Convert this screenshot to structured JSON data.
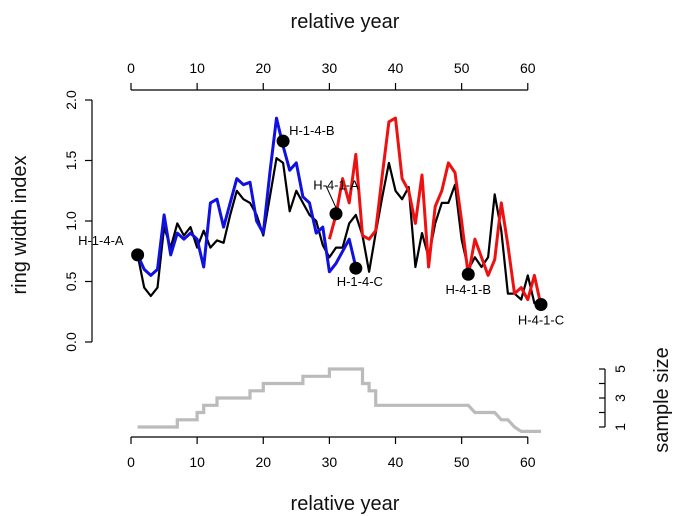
{
  "chart_data": [
    {
      "type": "line",
      "title": "",
      "xlabel_top": "relative year",
      "ylabel": "ring width index",
      "x_ticks": [
        0,
        10,
        20,
        30,
        40,
        50,
        60
      ],
      "xlim": [
        0,
        62
      ],
      "y_ticks": [
        0.0,
        0.5,
        1.0,
        1.5,
        2.0
      ],
      "y_tick_labels": [
        "0.0",
        "0.5",
        "1.0",
        "1.5",
        "2.0"
      ],
      "ylim": [
        0,
        2
      ],
      "grid": false,
      "series": [
        {
          "color": "#000000",
          "x": [
            1,
            2,
            3,
            4,
            5,
            6,
            7,
            8,
            9,
            10,
            11,
            12,
            13,
            14,
            15,
            16,
            17,
            18,
            19,
            20,
            21,
            22,
            23,
            24,
            25,
            26,
            27,
            28,
            29,
            30,
            31,
            32,
            33,
            34,
            35,
            36,
            37,
            38,
            39,
            40,
            41,
            42,
            43,
            44,
            45,
            46,
            47,
            48,
            49,
            50,
            51,
            52,
            53,
            54,
            55,
            56,
            57,
            58,
            59,
            60,
            61,
            62
          ],
          "values": [
            0.72,
            0.45,
            0.38,
            0.45,
            0.95,
            0.78,
            0.98,
            0.88,
            0.95,
            0.78,
            0.92,
            0.78,
            0.84,
            0.82,
            1.05,
            1.25,
            1.18,
            1.15,
            1.05,
            0.88,
            1.2,
            1.52,
            1.48,
            1.08,
            1.25,
            1.15,
            1.05,
            1.0,
            0.8,
            0.7,
            0.78,
            0.78,
            0.98,
            1.05,
            0.88,
            0.58,
            0.9,
            1.2,
            1.48,
            1.25,
            1.18,
            1.28,
            0.62,
            0.9,
            0.7,
            0.98,
            1.15,
            1.15,
            1.3,
            0.85,
            0.6,
            0.7,
            0.62,
            0.7,
            1.22,
            0.92,
            0.4,
            0.4,
            0.35,
            0.55,
            0.32,
            0.3
          ]
        },
        {
          "color": "#1010e0",
          "x": [
            1,
            2,
            3,
            4,
            5,
            6,
            7,
            8,
            9,
            10,
            11,
            12,
            13,
            14,
            15,
            16,
            17,
            18,
            19,
            20,
            21,
            22,
            23,
            24,
            25,
            26,
            27,
            28,
            29,
            30,
            31,
            32,
            33,
            34
          ],
          "values": [
            0.72,
            0.6,
            0.55,
            0.6,
            1.05,
            0.72,
            0.9,
            0.85,
            0.9,
            0.85,
            0.62,
            1.15,
            1.18,
            0.95,
            1.15,
            1.35,
            1.3,
            1.32,
            1.0,
            0.9,
            1.4,
            1.85,
            1.62,
            1.42,
            1.48,
            1.2,
            1.15,
            0.9,
            0.95,
            0.58,
            0.65,
            0.75,
            0.85,
            0.62
          ]
        },
        {
          "color": "#ee1111",
          "x": [
            30,
            31,
            32,
            33,
            34,
            35,
            36,
            37,
            38,
            39,
            40,
            41,
            42,
            43,
            44,
            45,
            46,
            47,
            48,
            49,
            50,
            51,
            52,
            53,
            54,
            55,
            56,
            57,
            58,
            59,
            60,
            61,
            62
          ],
          "values": [
            0.85,
            1.05,
            1.35,
            1.15,
            1.55,
            0.88,
            0.85,
            0.92,
            1.38,
            1.82,
            1.85,
            1.35,
            1.25,
            0.98,
            1.38,
            0.62,
            1.12,
            1.25,
            1.48,
            1.4,
            1.0,
            0.55,
            0.85,
            0.7,
            0.55,
            0.68,
            1.15,
            0.8,
            0.4,
            0.45,
            0.35,
            0.55,
            0.3
          ]
        }
      ],
      "points": [
        {
          "label": "H-1-4-A",
          "x": 1,
          "y": 0.72
        },
        {
          "label": "H-1-4-B",
          "x": 23,
          "y": 1.66
        },
        {
          "label": "H-4-1-A",
          "x": 31,
          "y": 1.06
        },
        {
          "label": "H-1-4-C",
          "x": 34,
          "y": 0.61
        },
        {
          "label": "H-4-1-B",
          "x": 51,
          "y": 0.56
        },
        {
          "label": "H-4-1-C",
          "x": 62,
          "y": 0.31
        }
      ]
    },
    {
      "type": "line",
      "xlabel": "relative year",
      "ylabel": "sample size",
      "x_ticks": [
        0,
        10,
        20,
        30,
        40,
        50,
        60
      ],
      "xlim": [
        0,
        62
      ],
      "y_ticks": [
        1,
        2,
        3,
        4,
        5
      ],
      "y_tick_labels": [
        "1",
        "",
        "3",
        "",
        "5"
      ],
      "ylim": [
        1,
        5
      ],
      "grid": false,
      "series": [
        {
          "color": "#bbbbbb",
          "x": [
            1,
            7,
            7,
            10,
            10,
            11,
            11,
            12,
            12,
            13,
            13,
            16,
            16,
            18,
            18,
            19,
            19,
            20,
            20,
            21,
            21,
            24,
            24,
            26,
            26,
            29,
            29,
            30,
            30,
            33,
            33,
            35,
            35,
            36,
            36,
            37,
            37,
            51,
            51,
            52,
            52,
            55,
            55,
            56,
            56,
            57,
            57,
            58,
            58,
            59,
            59,
            62
          ],
          "values": [
            1,
            1,
            1.5,
            1.5,
            2,
            2,
            2.5,
            2.5,
            2.5,
            2.5,
            3,
            3,
            3,
            3,
            3.5,
            3.5,
            3.5,
            3.5,
            4,
            4,
            4,
            4,
            4,
            4,
            4.5,
            4.5,
            4.5,
            4.5,
            5,
            5,
            5,
            5,
            4,
            4,
            3.5,
            3.5,
            2.5,
            2.5,
            2.5,
            2,
            2,
            2,
            2,
            1.5,
            1.5,
            1.5,
            1.5,
            1,
            1,
            0.7,
            0.7,
            0.7
          ]
        }
      ]
    }
  ]
}
